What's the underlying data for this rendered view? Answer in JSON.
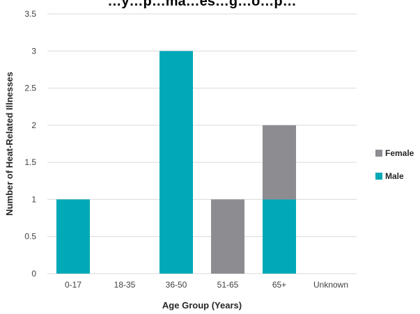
{
  "chart_data": {
    "type": "bar",
    "stacked": true,
    "title": "…y…p…ma…es…g…o…p…",
    "xlabel": "Age Group (Years)",
    "ylabel": "Number of Heat-Related Illnesses",
    "categories": [
      "0-17",
      "18-35",
      "36-50",
      "51-65",
      "65+",
      "Unknown"
    ],
    "series": [
      {
        "name": "Male",
        "color": "#00A9B7",
        "values": [
          1,
          0,
          3,
          0,
          1,
          0
        ]
      },
      {
        "name": "Female",
        "color": "#8C8C91",
        "values": [
          0,
          0,
          0,
          1,
          1,
          0
        ]
      }
    ],
    "ylim": [
      0,
      3.5
    ],
    "yticks": [
      "0",
      "0.5",
      "1",
      "1.5",
      "2",
      "2.5",
      "3",
      "3.5"
    ],
    "grid": true,
    "legend_position": "right"
  }
}
